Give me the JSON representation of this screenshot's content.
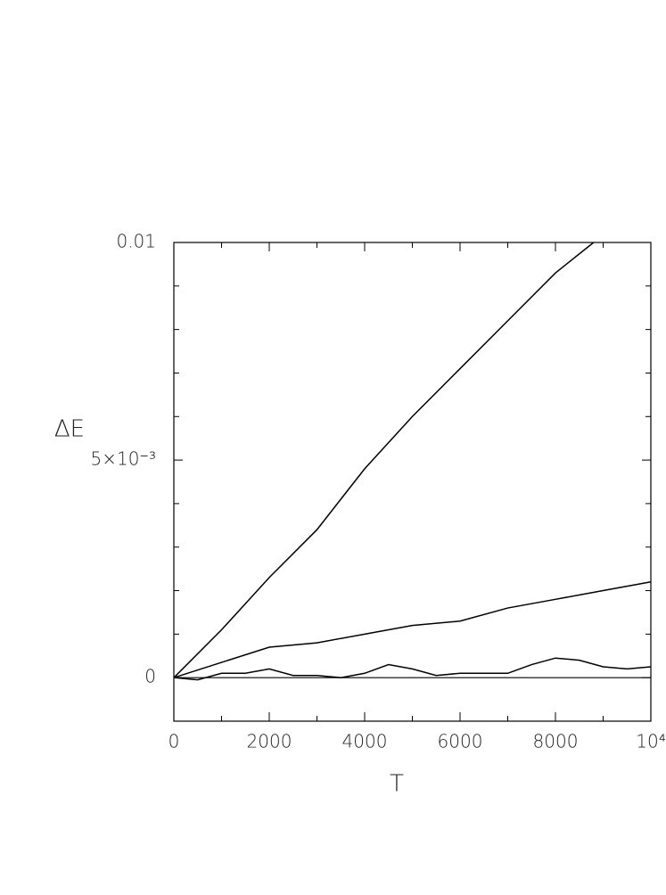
{
  "chart_data": {
    "type": "line",
    "xlabel": "T",
    "ylabel": "ΔE",
    "xlim": [
      0,
      10000
    ],
    "ylim": [
      -0.001,
      0.01
    ],
    "xticks": [
      0,
      2000,
      4000,
      6000,
      8000,
      {
        "value": 10000,
        "label": "10⁴"
      }
    ],
    "x_minor_ticks": [
      1000,
      3000,
      5000,
      7000,
      9000
    ],
    "yticks": [
      0,
      {
        "value": 0.005,
        "label": "5×10⁻³"
      },
      0.01
    ],
    "y_minor_ticks": [
      -0.001,
      0.001,
      0.002,
      0.003,
      0.004,
      0.006,
      0.007,
      0.008,
      0.009
    ],
    "reference_line": 0,
    "series": [
      {
        "color": "#000000",
        "x": [
          0,
          1000,
          2000,
          3000,
          4000,
          5000,
          6000,
          7000,
          8000,
          8800
        ],
        "values": [
          0,
          0.0011,
          0.0023,
          0.0034,
          0.0048,
          0.006,
          0.0071,
          0.0082,
          0.0093,
          0.01
        ]
      },
      {
        "color": "#000000",
        "x": [
          0,
          1000,
          2000,
          3000,
          4000,
          5000,
          6000,
          7000,
          8000,
          9000,
          10000
        ],
        "values": [
          0,
          0.00035,
          0.0007,
          0.0008,
          0.001,
          0.0012,
          0.0013,
          0.0016,
          0.0018,
          0.002,
          0.0022
        ]
      },
      {
        "color": "#000000",
        "x": [
          0,
          500,
          1000,
          1500,
          2000,
          2500,
          3000,
          3500,
          4000,
          4500,
          5000,
          5500,
          6000,
          6500,
          7000,
          7500,
          8000,
          8500,
          9000,
          9500,
          10000
        ],
        "values": [
          0,
          -5e-05,
          0.0001,
          0.0001,
          0.0002,
          5e-05,
          5e-05,
          0,
          0.0001,
          0.0003,
          0.0002,
          5e-05,
          0.0001,
          0.0001,
          0.0001,
          0.0003,
          0.00045,
          0.0004,
          0.00025,
          0.0002,
          0.00025
        ]
      }
    ]
  }
}
